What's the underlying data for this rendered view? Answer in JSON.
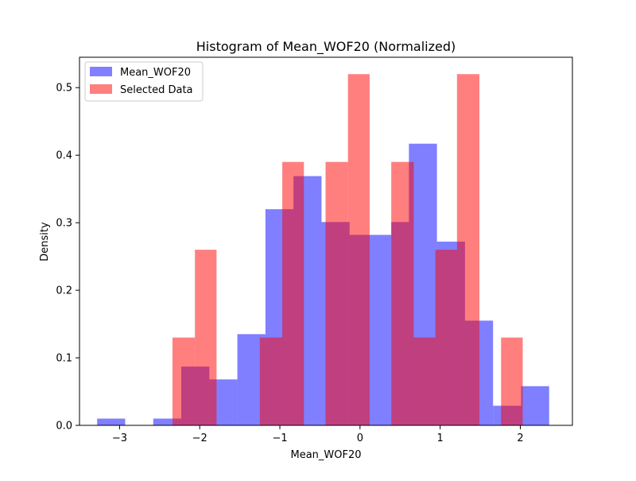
{
  "chart_data": {
    "type": "bar",
    "title": "Histogram of Mean_WOF20 (Normalized)",
    "xlabel": "Mean_WOF20",
    "ylabel": "Density",
    "xlim": [
      -3.5,
      2.65
    ],
    "ylim": [
      0,
      0.545
    ],
    "xticks": [
      -3,
      -2,
      -1,
      0,
      1,
      2
    ],
    "yticks": [
      0.0,
      0.1,
      0.2,
      0.3,
      0.4,
      0.5
    ],
    "xtick_labels": [
      "−3",
      "−2",
      "−1",
      "0",
      "1",
      "2"
    ],
    "ytick_labels": [
      "0.0",
      "0.1",
      "0.2",
      "0.3",
      "0.4",
      "0.5"
    ],
    "grid": false,
    "legend_position": "top-left",
    "series": [
      {
        "name": "Mean_WOF20",
        "color": "#0000ff",
        "opacity": 0.5,
        "bins": [
          {
            "x0": -3.28,
            "x1": -2.93,
            "density": 0.01
          },
          {
            "x0": -2.93,
            "x1": -2.58,
            "density": 0.0
          },
          {
            "x0": -2.58,
            "x1": -2.23,
            "density": 0.01
          },
          {
            "x0": -2.23,
            "x1": -1.88,
            "density": 0.087
          },
          {
            "x0": -1.88,
            "x1": -1.53,
            "density": 0.068
          },
          {
            "x0": -1.53,
            "x1": -1.18,
            "density": 0.135
          },
          {
            "x0": -1.18,
            "x1": -0.83,
            "density": 0.32
          },
          {
            "x0": -0.83,
            "x1": -0.48,
            "density": 0.369
          },
          {
            "x0": -0.48,
            "x1": -0.13,
            "density": 0.301
          },
          {
            "x0": -0.13,
            "x1": 0.11,
            "density": 0.282
          },
          {
            "x0": 0.11,
            "x1": 0.39,
            "density": 0.282
          },
          {
            "x0": 0.39,
            "x1": 0.61,
            "density": 0.301
          },
          {
            "x0": 0.61,
            "x1": 0.96,
            "density": 0.417
          },
          {
            "x0": 0.96,
            "x1": 1.31,
            "density": 0.272
          },
          {
            "x0": 1.31,
            "x1": 1.66,
            "density": 0.155
          },
          {
            "x0": 1.66,
            "x1": 2.01,
            "density": 0.029
          },
          {
            "x0": 2.01,
            "x1": 2.36,
            "density": 0.058
          }
        ]
      },
      {
        "name": "Selected Data",
        "color": "#ff0000",
        "opacity": 0.5,
        "bins": [
          {
            "x0": -2.34,
            "x1": -2.06,
            "density": 0.13
          },
          {
            "x0": -2.06,
            "x1": -1.79,
            "density": 0.26
          },
          {
            "x0": -1.79,
            "x1": -1.52,
            "density": 0.0
          },
          {
            "x0": -1.52,
            "x1": -1.25,
            "density": 0.0
          },
          {
            "x0": -1.25,
            "x1": -0.97,
            "density": 0.13
          },
          {
            "x0": -0.97,
            "x1": -0.7,
            "density": 0.39
          },
          {
            "x0": -0.7,
            "x1": -0.43,
            "density": 0.0
          },
          {
            "x0": -0.43,
            "x1": -0.15,
            "density": 0.39
          },
          {
            "x0": -0.15,
            "x1": 0.12,
            "density": 0.52
          },
          {
            "x0": 0.12,
            "x1": 0.39,
            "density": 0.0
          },
          {
            "x0": 0.39,
            "x1": 0.67,
            "density": 0.39
          },
          {
            "x0": 0.67,
            "x1": 0.94,
            "density": 0.13
          },
          {
            "x0": 0.94,
            "x1": 1.21,
            "density": 0.26
          },
          {
            "x0": 1.21,
            "x1": 1.49,
            "density": 0.52
          },
          {
            "x0": 1.49,
            "x1": 1.76,
            "density": 0.0
          },
          {
            "x0": 1.76,
            "x1": 2.03,
            "density": 0.13
          }
        ]
      }
    ]
  }
}
